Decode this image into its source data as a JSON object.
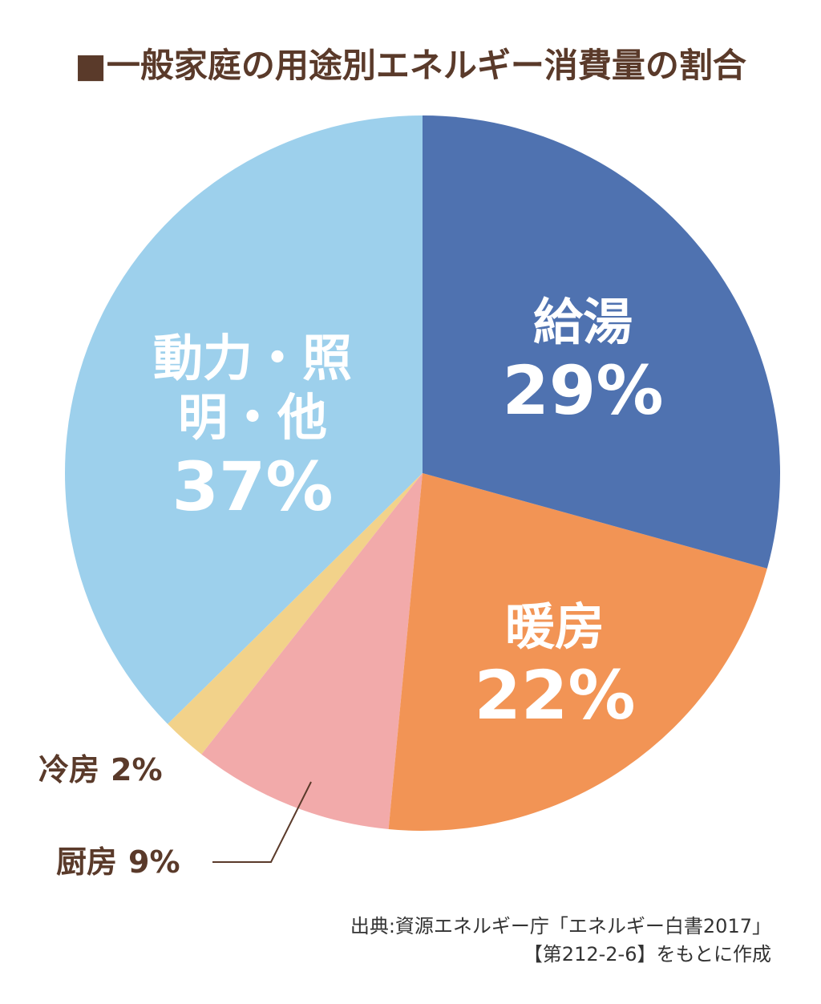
{
  "chart_data": {
    "type": "pie",
    "title": "■一般家庭の用途別エネルギー消費量の割合",
    "categories": [
      "給湯",
      "暖房",
      "厨房",
      "冷房",
      "動力・照明・他"
    ],
    "values": [
      29,
      22,
      9,
      2,
      37
    ],
    "value_labels": [
      "29%",
      "22%",
      "9%",
      "2%",
      "37%"
    ],
    "colors": [
      "#4f72b0",
      "#f29455",
      "#f2aaaa",
      "#f2d28a",
      "#9dd0ec"
    ],
    "source": [
      "出典:資源エネルギー庁「エネルギー白書2017」",
      "【第212-2-6】をもとに作成"
    ]
  }
}
